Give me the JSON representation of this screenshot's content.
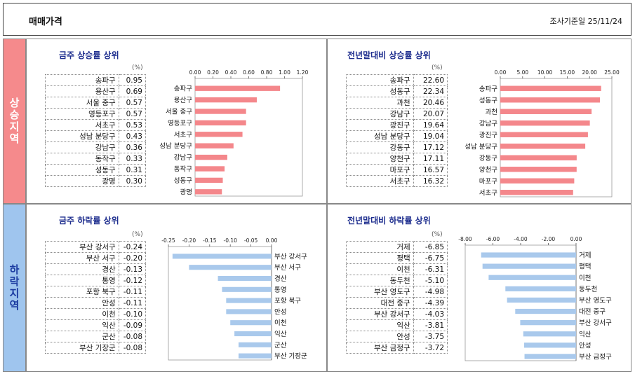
{
  "header": {
    "title": "매매가격",
    "date": "조사기준일   25/11/24"
  },
  "side": {
    "rise": "상승지역",
    "fall": "하락지역"
  },
  "unit": "(%)",
  "colors": {
    "rise_bar": "#f4878b",
    "fall_bar": "#a9c9ec"
  },
  "chart_data": [
    {
      "type": "bar",
      "title": "금주 상승률 상위",
      "categories": [
        "송파구",
        "용산구",
        "서울 중구",
        "영등포구",
        "서초구",
        "성남 분당구",
        "강남구",
        "동작구",
        "성동구",
        "광명"
      ],
      "values": [
        0.95,
        0.69,
        0.57,
        0.57,
        0.53,
        0.43,
        0.36,
        0.33,
        0.31,
        0.3
      ],
      "ticks": [
        "0.00",
        "0.20",
        "0.40",
        "0.60",
        "0.80",
        "1.00",
        "1.20"
      ],
      "xlim": [
        0,
        1.2
      ]
    },
    {
      "type": "bar",
      "title": "전년말대비 상승률 상위",
      "categories": [
        "송파구",
        "성동구",
        "과천",
        "강남구",
        "광진구",
        "성남 분당구",
        "강동구",
        "양천구",
        "마포구",
        "서초구"
      ],
      "values": [
        22.6,
        22.34,
        20.46,
        20.07,
        19.64,
        19.04,
        17.12,
        17.11,
        16.57,
        16.32
      ],
      "ticks": [
        "0.00",
        "5.00",
        "10.00",
        "15.00",
        "20.00",
        "25.00"
      ],
      "xlim": [
        0,
        25
      ]
    },
    {
      "type": "bar",
      "title": "금주 하락률 상위",
      "categories": [
        "부산 강서구",
        "부산 서구",
        "경산",
        "통영",
        "포항 북구",
        "안성",
        "이천",
        "익산",
        "군산",
        "부산 기장군"
      ],
      "values": [
        -0.24,
        -0.2,
        -0.13,
        -0.12,
        -0.11,
        -0.11,
        -0.1,
        -0.09,
        -0.08,
        -0.08
      ],
      "ticks": [
        "-0.25",
        "-0.20",
        "-0.15",
        "-0.10",
        "-0.05",
        "0.00"
      ],
      "xlim": [
        -0.25,
        0
      ]
    },
    {
      "type": "bar",
      "title": "전년말대비 하락률 상위",
      "categories": [
        "거제",
        "평택",
        "이천",
        "동두천",
        "부산 영도구",
        "대전 중구",
        "부산 강서구",
        "익산",
        "안성",
        "부산 금정구"
      ],
      "values": [
        -6.85,
        -6.75,
        -6.31,
        -5.1,
        -4.98,
        -4.39,
        -4.03,
        -3.81,
        -3.75,
        -3.72
      ],
      "ticks": [
        "-8.00",
        "-6.00",
        "-4.00",
        "-2.00",
        "0.00"
      ],
      "xlim": [
        -8,
        0
      ]
    }
  ]
}
